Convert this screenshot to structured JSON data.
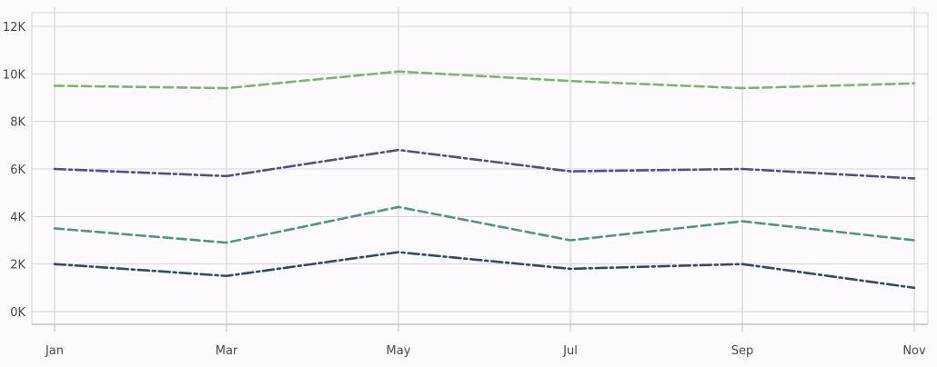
{
  "chart_data": {
    "type": "line",
    "title": "",
    "xlabel": "",
    "ylabel": "",
    "x": [
      "Jan",
      "Mar",
      "May",
      "Jul",
      "Sep",
      "Nov"
    ],
    "ylim": [
      0,
      12000
    ],
    "yticks": [
      0,
      2000,
      4000,
      6000,
      8000,
      10000,
      12000
    ],
    "ytick_labels": [
      "0K",
      "2K",
      "4K",
      "6K",
      "8K",
      "10K",
      "12K"
    ],
    "grid": true,
    "legend": "none",
    "series": [
      {
        "values": [
          9500,
          9400,
          10100,
          9700,
          9400,
          9600
        ],
        "color": "#76b86e",
        "dash": "dashed"
      },
      {
        "values": [
          6000,
          5700,
          6800,
          5900,
          6000,
          5600
        ],
        "color": "#5a4a86",
        "dash": "dash-dot"
      },
      {
        "values": [
          3500,
          2900,
          4400,
          3000,
          3800,
          3000
        ],
        "color": "#4a968c",
        "dash": "dashed"
      },
      {
        "values": [
          2000,
          1500,
          2500,
          1800,
          2000,
          1000
        ],
        "color": "#2f4a6a",
        "dash": "dash-dot"
      }
    ],
    "colors": {
      "grid": "#d6d2da",
      "axis": "#bdb8c2",
      "background": "#fdfafe"
    }
  }
}
